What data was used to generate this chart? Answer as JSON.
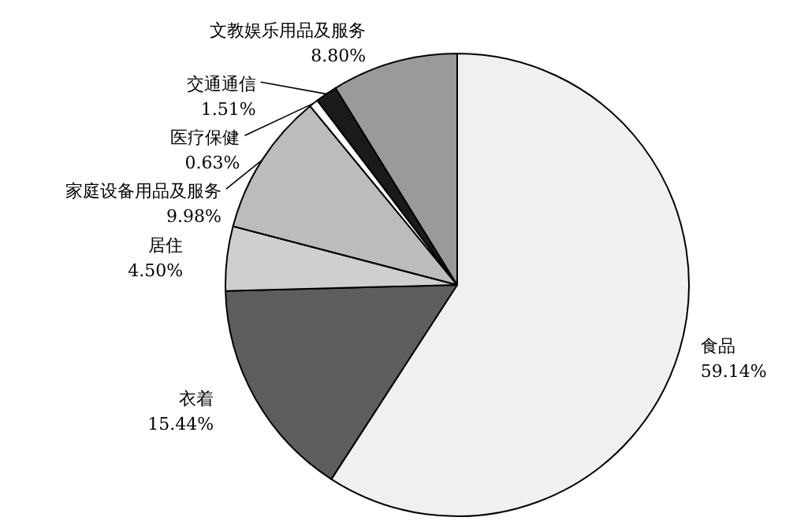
{
  "chart_data": {
    "type": "pie",
    "categories": [
      "食品",
      "衣着",
      "居住",
      "家庭设备用品及服务",
      "医疗保健",
      "交通通信",
      "文教娱乐用品及服务"
    ],
    "values": [
      59.14,
      15.44,
      4.5,
      9.98,
      0.63,
      1.51,
      8.8
    ],
    "value_labels": [
      "59.14%",
      "15.44%",
      "4.50%",
      "9.98%",
      "0.63%",
      "1.51%",
      "8.80%"
    ],
    "colors": [
      "#f0f0f0",
      "#5e5e5e",
      "#cfcfcf",
      "#bcbcbc",
      "#ffffff",
      "#1a1a1a",
      "#9a9a9a"
    ]
  }
}
